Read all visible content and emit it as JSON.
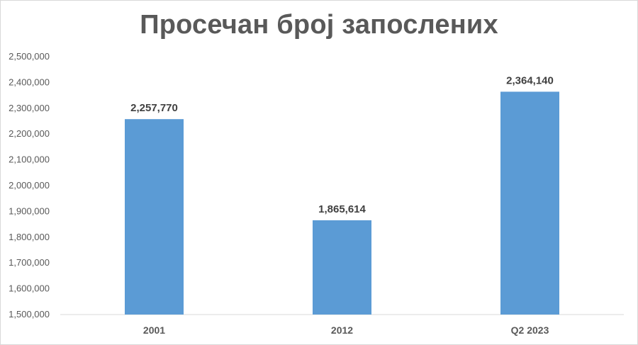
{
  "chart_data": {
    "type": "bar",
    "title": "Просечан број запослених",
    "categories": [
      "2001",
      "2012",
      "Q2 2023"
    ],
    "values": [
      2257770,
      1865614,
      2364140
    ],
    "data_labels": [
      "2,257,770",
      "1,865,614",
      "2,364,140"
    ],
    "ylim": [
      1500000,
      2500000
    ],
    "yticks": [
      1500000,
      1600000,
      1700000,
      1800000,
      1900000,
      2000000,
      2100000,
      2200000,
      2300000,
      2400000,
      2500000
    ],
    "ytick_labels": [
      "1,500,000",
      "1,600,000",
      "1,700,000",
      "1,800,000",
      "1,900,000",
      "2,000,000",
      "2,100,000",
      "2,200,000",
      "2,300,000",
      "2,400,000",
      "2,500,000"
    ],
    "xlabel": "",
    "ylabel": "",
    "grid": false,
    "legend": "none",
    "bar_color": "#5b9bd5",
    "axis_color": "#d9d9d9"
  }
}
